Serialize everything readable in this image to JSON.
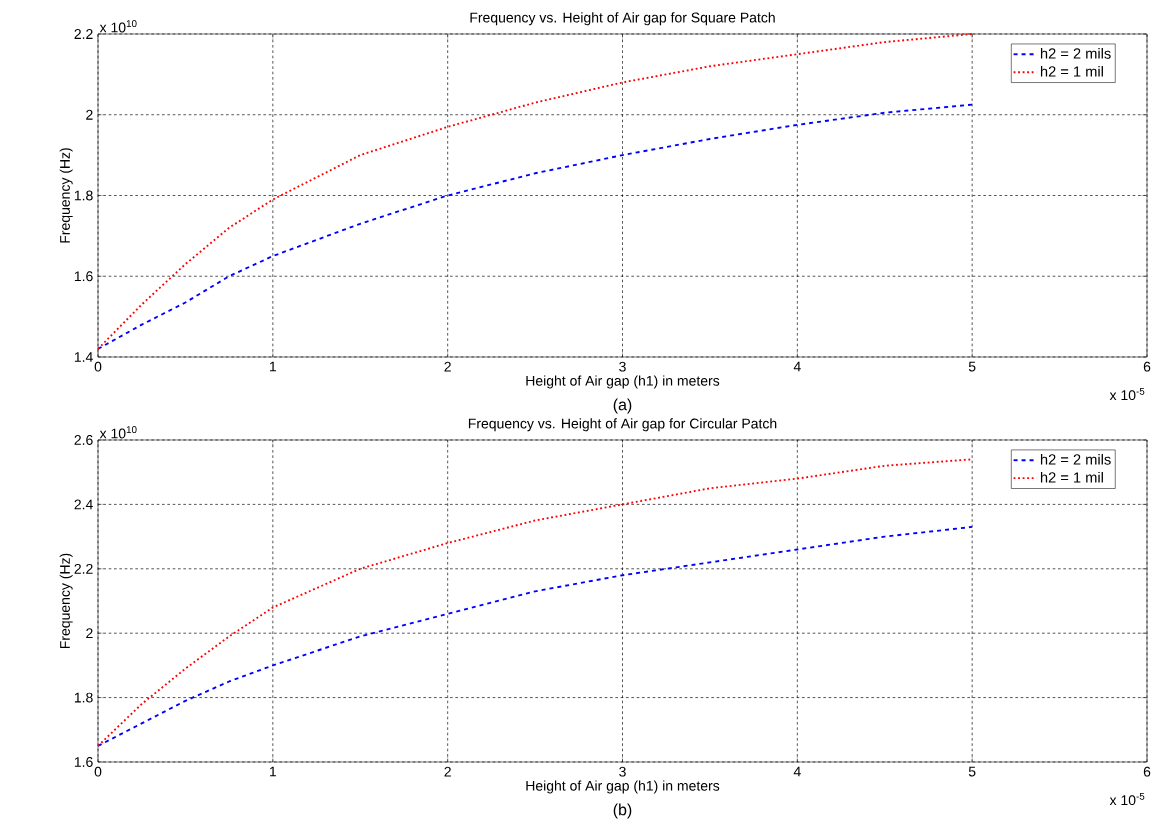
{
  "chart_data": [
    {
      "type": "line",
      "title": "Frequency vs. Height of Air gap for Square Patch",
      "xlabel": "Height of Air gap (h1) in meters",
      "ylabel": "Frequency (Hz)",
      "annotations": [
        "x 10$^{10}$",
        "x 10$^{-5}$",
        "(a)"
      ],
      "x": [
        0,
        0.25,
        0.5,
        0.75,
        1,
        1.5,
        2,
        2.5,
        3,
        3.5,
        4,
        4.5,
        5
      ],
      "series": [
        {
          "name": "h2 = 2 mils",
          "color": "#0000ff",
          "line_style": "dashed",
          "values": [
            1.42,
            1.48,
            1.535,
            1.6,
            1.65,
            1.73,
            1.8,
            1.855,
            1.9,
            1.94,
            1.975,
            2.005,
            2.025
          ]
        },
        {
          "name": "h2 = 1 mil",
          "color": "#ff0000",
          "line_style": "dotted",
          "values": [
            1.42,
            1.53,
            1.63,
            1.72,
            1.79,
            1.9,
            1.97,
            2.03,
            2.08,
            2.12,
            2.15,
            2.18,
            2.2
          ]
        }
      ],
      "xlim": [
        0,
        6
      ],
      "xticks": [
        0,
        1,
        2,
        3,
        4,
        5,
        6
      ],
      "ylim": [
        1.4,
        2.2
      ],
      "yticks": [
        1.4,
        1.6,
        1.8,
        2,
        2.2
      ],
      "grid": true,
      "legend": "top right",
      "marker": "none"
    },
    {
      "type": "line",
      "title": "Frequency vs. Height of Air gap for Circular Patch",
      "xlabel": "Height of Air gap (h1) in meters",
      "ylabel": "Frequency (Hz)",
      "annotations": [
        "x 10$^{10}$",
        "x 10$^{-5}$",
        "(b)"
      ],
      "x": [
        0,
        0.25,
        0.5,
        0.75,
        1,
        1.5,
        2,
        2.5,
        3,
        3.5,
        4,
        4.5,
        5
      ],
      "series": [
        {
          "name": "h2 = 2 mils",
          "color": "#0000ff",
          "line_style": "dashed",
          "values": [
            1.65,
            1.72,
            1.79,
            1.85,
            1.9,
            1.99,
            2.06,
            2.13,
            2.18,
            2.22,
            2.26,
            2.3,
            2.33
          ]
        },
        {
          "name": "h2 = 1 mil",
          "color": "#ff0000",
          "line_style": "dotted",
          "values": [
            1.65,
            1.78,
            1.89,
            1.99,
            2.08,
            2.2,
            2.28,
            2.35,
            2.4,
            2.45,
            2.48,
            2.52,
            2.54
          ]
        }
      ],
      "xlim": [
        0,
        6
      ],
      "xticks": [
        0,
        1,
        2,
        3,
        4,
        5,
        6
      ],
      "ylim": [
        1.6,
        2.6
      ],
      "yticks": [
        1.6,
        1.8,
        2,
        2.2,
        2.4,
        2.6
      ],
      "grid": true,
      "legend": "top right",
      "marker": "none"
    }
  ]
}
